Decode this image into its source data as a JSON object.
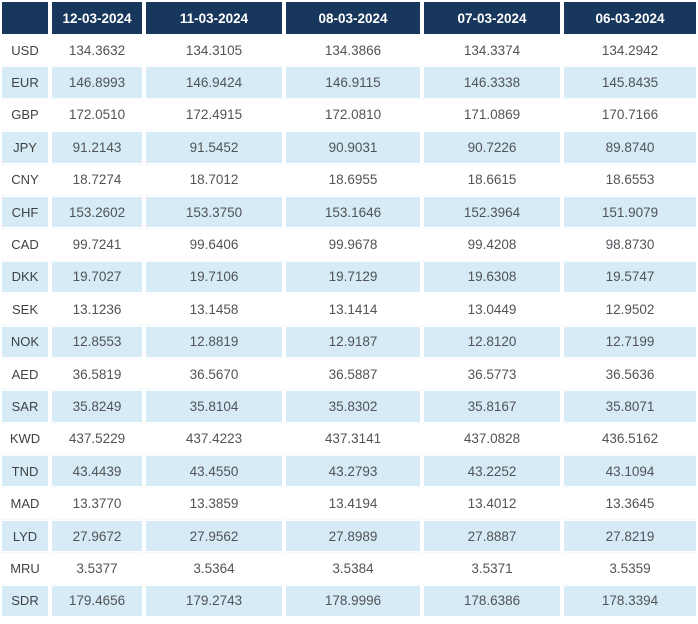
{
  "colors": {
    "header_bg": "#17375C",
    "stripe_bg": "#D6EBF5",
    "header_text": "#FFFFFF",
    "currency_text": "#3E4245",
    "value_text": "#505458"
  },
  "table": {
    "corner_label": "",
    "date_columns": [
      "12-03-2024",
      "11-03-2024",
      "08-03-2024",
      "07-03-2024",
      "06-03-2024"
    ],
    "rows": [
      {
        "currency": "USD",
        "values": [
          "134.3632",
          "134.3105",
          "134.3866",
          "134.3374",
          "134.2942"
        ]
      },
      {
        "currency": "EUR",
        "values": [
          "146.8993",
          "146.9424",
          "146.9115",
          "146.3338",
          "145.8435"
        ]
      },
      {
        "currency": "GBP",
        "values": [
          "172.0510",
          "172.4915",
          "172.0810",
          "171.0869",
          "170.7166"
        ]
      },
      {
        "currency": "JPY",
        "values": [
          "91.2143",
          "91.5452",
          "90.9031",
          "90.7226",
          "89.8740"
        ]
      },
      {
        "currency": "CNY",
        "values": [
          "18.7274",
          "18.7012",
          "18.6955",
          "18.6615",
          "18.6553"
        ]
      },
      {
        "currency": "CHF",
        "values": [
          "153.2602",
          "153.3750",
          "153.1646",
          "152.3964",
          "151.9079"
        ]
      },
      {
        "currency": "CAD",
        "values": [
          "99.7241",
          "99.6406",
          "99.9678",
          "99.4208",
          "98.8730"
        ]
      },
      {
        "currency": "DKK",
        "values": [
          "19.7027",
          "19.7106",
          "19.7129",
          "19.6308",
          "19.5747"
        ]
      },
      {
        "currency": "SEK",
        "values": [
          "13.1236",
          "13.1458",
          "13.1414",
          "13.0449",
          "12.9502"
        ]
      },
      {
        "currency": "NOK",
        "values": [
          "12.8553",
          "12.8819",
          "12.9187",
          "12.8120",
          "12.7199"
        ]
      },
      {
        "currency": "AED",
        "values": [
          "36.5819",
          "36.5670",
          "36.5887",
          "36.5773",
          "36.5636"
        ]
      },
      {
        "currency": "SAR",
        "values": [
          "35.8249",
          "35.8104",
          "35.8302",
          "35.8167",
          "35.8071"
        ]
      },
      {
        "currency": "KWD",
        "values": [
          "437.5229",
          "437.4223",
          "437.3141",
          "437.0828",
          "436.5162"
        ]
      },
      {
        "currency": "TND",
        "values": [
          "43.4439",
          "43.4550",
          "43.2793",
          "43.2252",
          "43.1094"
        ]
      },
      {
        "currency": "MAD",
        "values": [
          "13.3770",
          "13.3859",
          "13.4194",
          "13.4012",
          "13.3645"
        ]
      },
      {
        "currency": "LYD",
        "values": [
          "27.9672",
          "27.9562",
          "27.8989",
          "27.8887",
          "27.8219"
        ]
      },
      {
        "currency": "MRU",
        "values": [
          "3.5377",
          "3.5364",
          "3.5384",
          "3.5371",
          "3.5359"
        ]
      },
      {
        "currency": "SDR",
        "values": [
          "179.4656",
          "179.2743",
          "178.9996",
          "178.6386",
          "178.3394"
        ]
      }
    ]
  }
}
